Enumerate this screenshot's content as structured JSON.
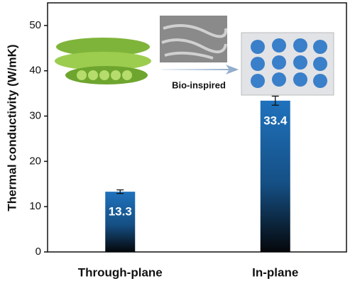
{
  "chart_data": {
    "type": "bar",
    "y_label": "Thermal conductivity (W/mK)",
    "annotation": "Bio-inspired",
    "categories": [
      "Through-plane",
      "In-plane"
    ],
    "values": [
      13.3,
      33.4
    ],
    "errors": [
      0.4,
      1.0
    ],
    "color": "#1f72bd",
    "ylim": [
      0,
      55
    ],
    "yticks": [
      0,
      10,
      20,
      30,
      40,
      50
    ]
  }
}
